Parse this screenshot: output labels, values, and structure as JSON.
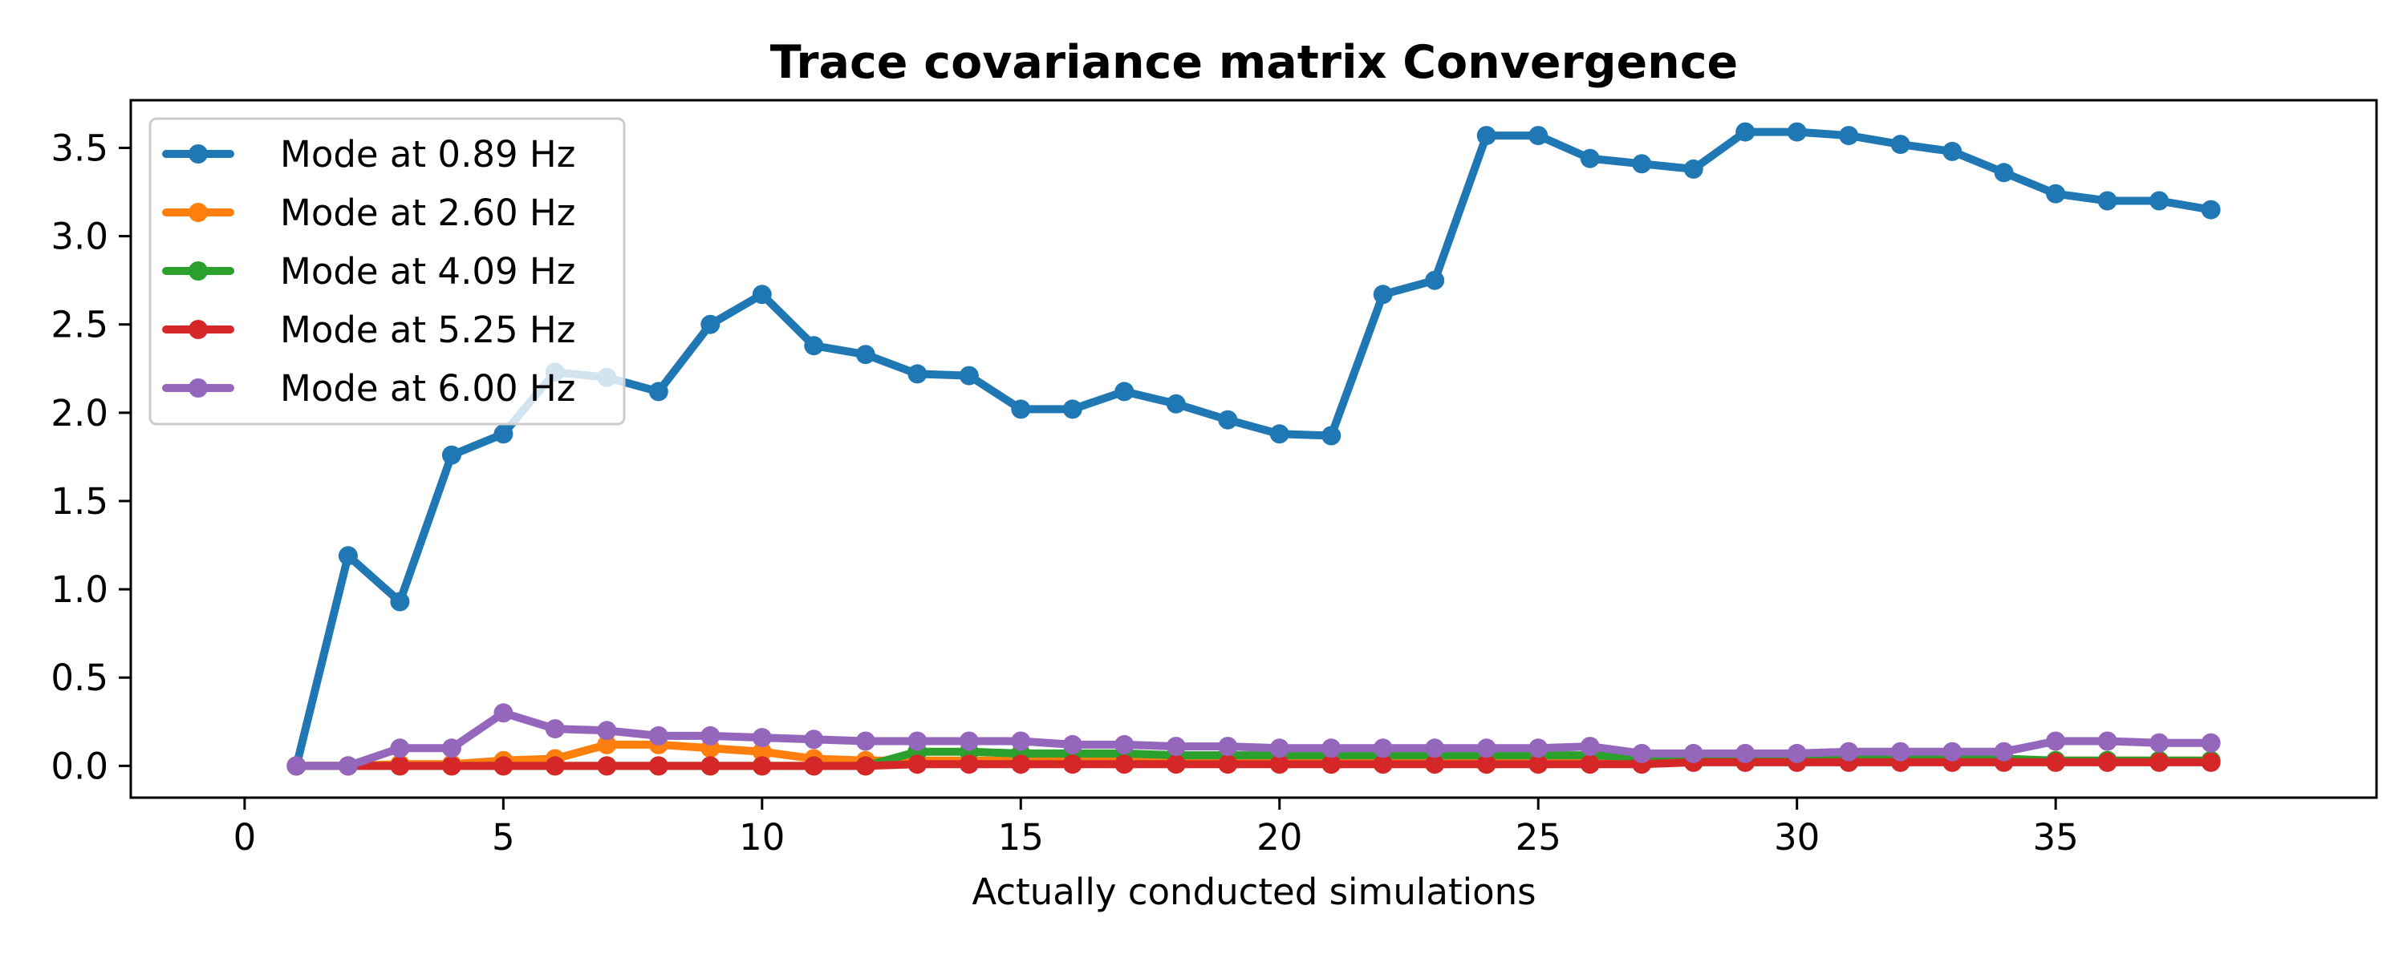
{
  "chart_data": {
    "type": "line",
    "title": "Trace covariance matrix Convergence",
    "xlabel": "Actually conducted simulations",
    "ylabel": "",
    "xlim": [
      -2.2,
      41.2
    ],
    "ylim": [
      -0.18,
      3.77
    ],
    "xticks": [
      0,
      5,
      10,
      15,
      20,
      25,
      30,
      35
    ],
    "yticks": [
      0.0,
      0.5,
      1.0,
      1.5,
      2.0,
      2.5,
      3.0,
      3.5
    ],
    "ytick_labels": [
      "0.0",
      "0.5",
      "1.0",
      "1.5",
      "2.0",
      "2.5",
      "3.0",
      "3.5"
    ],
    "grid": false,
    "legend_position": "upper-left",
    "x": [
      1,
      2,
      3,
      4,
      5,
      6,
      7,
      8,
      9,
      10,
      11,
      12,
      13,
      14,
      15,
      16,
      17,
      18,
      19,
      20,
      21,
      22,
      23,
      24,
      25,
      26,
      27,
      28,
      29,
      30,
      31,
      32,
      33,
      34,
      35,
      36,
      37,
      38
    ],
    "series": [
      {
        "name": "Mode at 0.89 Hz",
        "color": "#1f77b4",
        "values": [
          0.0,
          1.19,
          0.93,
          1.76,
          1.88,
          2.23,
          2.2,
          2.12,
          2.5,
          2.67,
          2.38,
          2.33,
          2.22,
          2.21,
          2.02,
          2.02,
          2.12,
          2.05,
          1.96,
          1.88,
          1.87,
          2.67,
          2.75,
          3.57,
          3.57,
          3.44,
          3.41,
          3.38,
          3.59,
          3.59,
          3.57,
          3.52,
          3.48,
          3.36,
          3.24,
          3.2,
          3.2,
          3.15
        ]
      },
      {
        "name": "Mode at 2.60 Hz",
        "color": "#ff7f0e",
        "values": [
          0.0,
          0.0,
          0.01,
          0.01,
          0.03,
          0.04,
          0.12,
          0.12,
          0.1,
          0.08,
          0.04,
          0.03,
          0.03,
          0.03,
          0.03,
          0.03,
          0.03,
          0.03,
          0.03,
          0.03,
          0.03,
          0.03,
          0.03,
          0.03,
          0.03,
          0.03,
          0.03,
          0.03,
          0.03,
          0.03,
          0.03,
          0.03,
          0.03,
          0.03,
          0.03,
          0.03,
          0.03,
          0.03
        ]
      },
      {
        "name": "Mode at 4.09 Hz",
        "color": "#2ca02c",
        "values": [
          0.0,
          0.0,
          0.0,
          0.0,
          0.0,
          0.0,
          0.0,
          0.0,
          0.0,
          0.0,
          0.0,
          0.0,
          0.08,
          0.08,
          0.07,
          0.07,
          0.07,
          0.06,
          0.06,
          0.06,
          0.06,
          0.06,
          0.06,
          0.06,
          0.06,
          0.06,
          0.05,
          0.05,
          0.05,
          0.04,
          0.04,
          0.04,
          0.04,
          0.04,
          0.03,
          0.03,
          0.03,
          0.03
        ]
      },
      {
        "name": "Mode at 5.25 Hz",
        "color": "#d62728",
        "values": [
          0.0,
          0.0,
          0.0,
          0.0,
          0.0,
          0.0,
          0.0,
          0.0,
          0.0,
          0.0,
          0.0,
          0.0,
          0.01,
          0.01,
          0.01,
          0.01,
          0.01,
          0.01,
          0.01,
          0.01,
          0.01,
          0.01,
          0.01,
          0.01,
          0.01,
          0.01,
          0.01,
          0.02,
          0.02,
          0.02,
          0.02,
          0.02,
          0.02,
          0.02,
          0.02,
          0.02,
          0.02,
          0.02
        ]
      },
      {
        "name": "Mode at 6.00 Hz",
        "color": "#9467bd",
        "values": [
          0.0,
          0.0,
          0.1,
          0.1,
          0.3,
          0.21,
          0.2,
          0.17,
          0.17,
          0.16,
          0.15,
          0.14,
          0.14,
          0.14,
          0.14,
          0.12,
          0.12,
          0.11,
          0.11,
          0.1,
          0.1,
          0.1,
          0.1,
          0.1,
          0.1,
          0.11,
          0.07,
          0.07,
          0.07,
          0.07,
          0.08,
          0.08,
          0.08,
          0.08,
          0.14,
          0.14,
          0.13,
          0.13
        ]
      }
    ]
  }
}
